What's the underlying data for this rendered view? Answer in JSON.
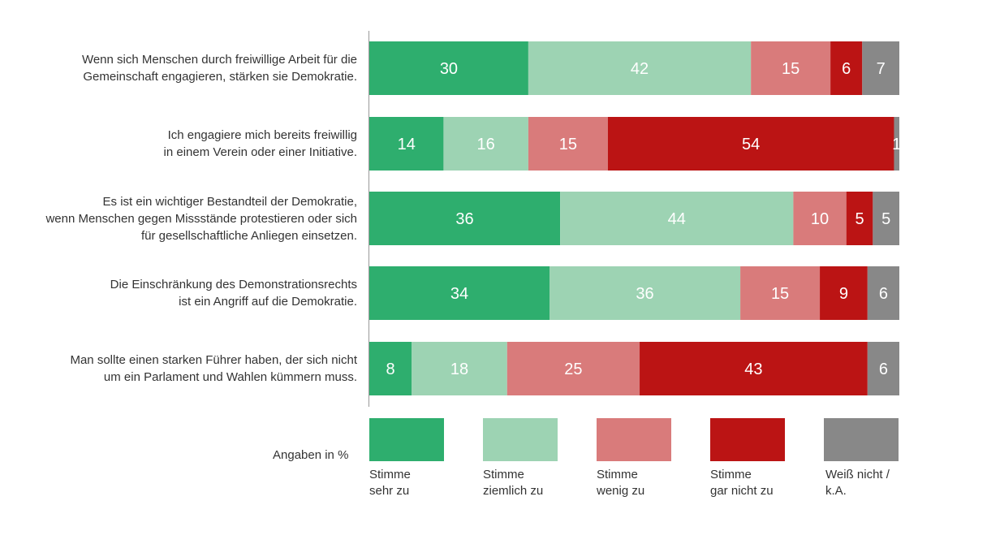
{
  "chart_data": {
    "type": "bar",
    "orientation": "horizontal",
    "stacked": true,
    "xlim": [
      0,
      100
    ],
    "categories": [
      [
        "Wenn sich Menschen durch freiwillige Arbeit für die",
        "Gemeinschaft engagieren, stärken sie Demokratie."
      ],
      [
        "Ich engagiere mich bereits freiwillig",
        "in einem Verein oder einer Initiative."
      ],
      [
        "Es ist ein wichtiger Bestandteil der Demokratie,",
        "wenn Menschen gegen Missstände protestieren oder sich",
        "für gesellschaftliche Anliegen einsetzen."
      ],
      [
        "Die Einschränkung des Demonstrationsrechts",
        "ist ein Angriff auf die Demokratie."
      ],
      [
        "Man sollte einen starken Führer haben, der sich nicht",
        "um ein Parlament und Wahlen kümmern muss."
      ]
    ],
    "series": [
      {
        "name": [
          "Stimme",
          "sehr zu"
        ],
        "color": "#2eae6e",
        "values": [
          30,
          14,
          36,
          34,
          8
        ]
      },
      {
        "name": [
          "Stimme",
          "ziemlich zu"
        ],
        "color": "#9dd3b3",
        "values": [
          42,
          16,
          44,
          36,
          18
        ]
      },
      {
        "name": [
          "Stimme",
          "wenig zu"
        ],
        "color": "#d97b7b",
        "values": [
          15,
          15,
          10,
          15,
          25
        ]
      },
      {
        "name": [
          "Stimme",
          "gar nicht zu"
        ],
        "color": "#bb1414",
        "values": [
          6,
          54,
          5,
          9,
          43
        ]
      },
      {
        "name": [
          "Weiß nicht /",
          "k.A."
        ],
        "color": "#888888",
        "values": [
          7,
          1,
          5,
          6,
          6
        ]
      }
    ],
    "units_note": "Angaben in %",
    "legend_position": "bottom",
    "grid": false
  }
}
